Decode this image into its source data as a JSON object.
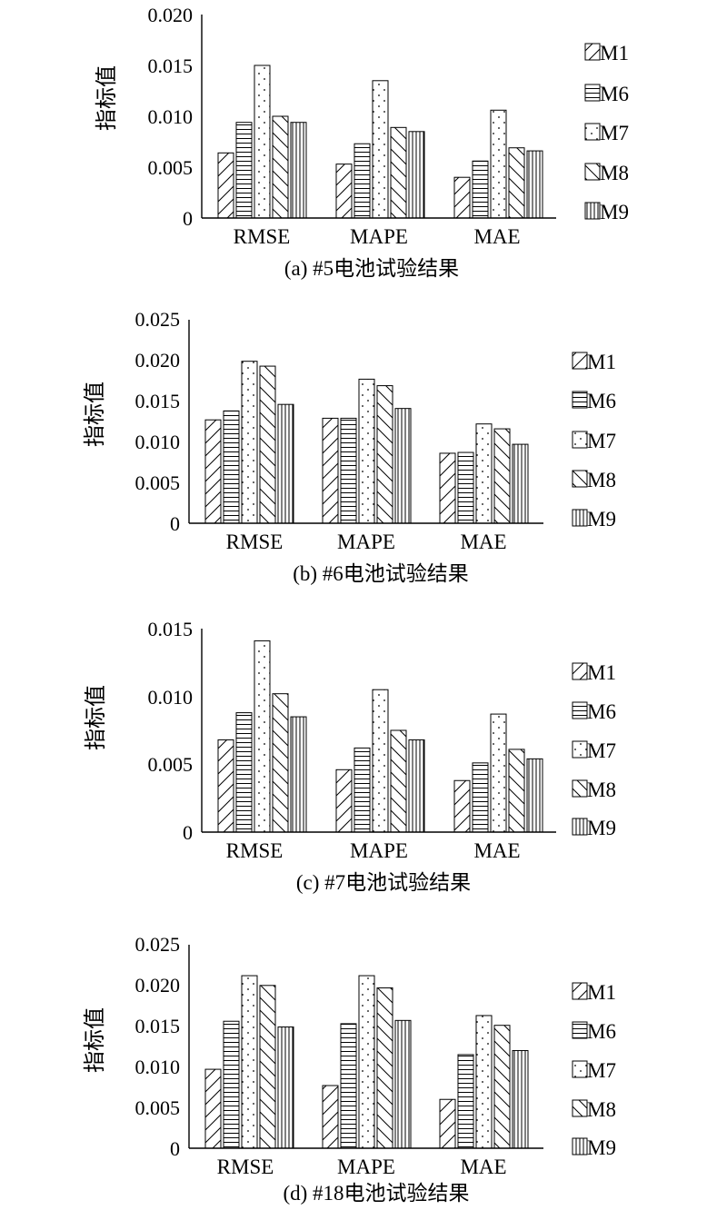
{
  "patterns": {
    "M1": "diag-up",
    "M6": "horizontal",
    "M7": "dots",
    "M8": "diag-down",
    "M9": "vertical"
  },
  "chart_data": [
    {
      "type": "bar",
      "title": "(a) #5电池试验结果",
      "ylabel": "指标值",
      "xlabel": "",
      "categories": [
        "RMSE",
        "MAPE",
        "MAE"
      ],
      "yticks": [
        "0",
        "0.005",
        "0.010",
        "0.015",
        "0.020"
      ],
      "ylim": [
        0,
        0.02
      ],
      "series": [
        {
          "name": "M1",
          "values": [
            0.0064,
            0.0053,
            0.004
          ]
        },
        {
          "name": "M6",
          "values": [
            0.0094,
            0.0073,
            0.0056
          ]
        },
        {
          "name": "M7",
          "values": [
            0.015,
            0.0135,
            0.0106
          ]
        },
        {
          "name": "M8",
          "values": [
            0.01,
            0.0089,
            0.0069
          ]
        },
        {
          "name": "M9",
          "values": [
            0.0094,
            0.0085,
            0.0066
          ]
        }
      ]
    },
    {
      "type": "bar",
      "title": "(b) #6电池试验结果",
      "ylabel": "指标值",
      "xlabel": "",
      "categories": [
        "RMSE",
        "MAPE",
        "MAE"
      ],
      "yticks": [
        "0",
        "0.005",
        "0.010",
        "0.015",
        "0.020",
        "0.025"
      ],
      "ylim": [
        0,
        0.025
      ],
      "series": [
        {
          "name": "M1",
          "values": [
            0.0127,
            0.0129,
            0.0086
          ]
        },
        {
          "name": "M6",
          "values": [
            0.0138,
            0.0129,
            0.0087
          ]
        },
        {
          "name": "M7",
          "values": [
            0.0199,
            0.0177,
            0.0122
          ]
        },
        {
          "name": "M8",
          "values": [
            0.0193,
            0.0169,
            0.0116
          ]
        },
        {
          "name": "M9",
          "values": [
            0.0146,
            0.0141,
            0.0097
          ]
        }
      ]
    },
    {
      "type": "bar",
      "title": "(c) #7电池试验结果",
      "ylabel": "指标值",
      "xlabel": "",
      "categories": [
        "RMSE",
        "MAPE",
        "MAE"
      ],
      "yticks": [
        "0",
        "0.005",
        "0.010",
        "0.015"
      ],
      "ylim": [
        0,
        0.015
      ],
      "series": [
        {
          "name": "M1",
          "values": [
            0.0068,
            0.0046,
            0.0038
          ]
        },
        {
          "name": "M6",
          "values": [
            0.0088,
            0.0062,
            0.0051
          ]
        },
        {
          "name": "M7",
          "values": [
            0.0141,
            0.0105,
            0.0087
          ]
        },
        {
          "name": "M8",
          "values": [
            0.0102,
            0.0075,
            0.0061
          ]
        },
        {
          "name": "M9",
          "values": [
            0.0085,
            0.0068,
            0.0054
          ]
        }
      ]
    },
    {
      "type": "bar",
      "title": "(d) #18电池试验结果",
      "ylabel": "指标值",
      "xlabel": "",
      "categories": [
        "RMSE",
        "MAPE",
        "MAE"
      ],
      "yticks": [
        "0",
        "0.005",
        "0.010",
        "0.015",
        "0.020",
        "0.025"
      ],
      "ylim": [
        0,
        0.025
      ],
      "series": [
        {
          "name": "M1",
          "values": [
            0.0097,
            0.0077,
            0.006
          ]
        },
        {
          "name": "M6",
          "values": [
            0.0156,
            0.0153,
            0.0115
          ]
        },
        {
          "name": "M7",
          "values": [
            0.0212,
            0.0212,
            0.0163
          ]
        },
        {
          "name": "M8",
          "values": [
            0.02,
            0.0197,
            0.0151
          ]
        },
        {
          "name": "M9",
          "values": [
            0.0149,
            0.0157,
            0.012
          ]
        }
      ]
    }
  ]
}
